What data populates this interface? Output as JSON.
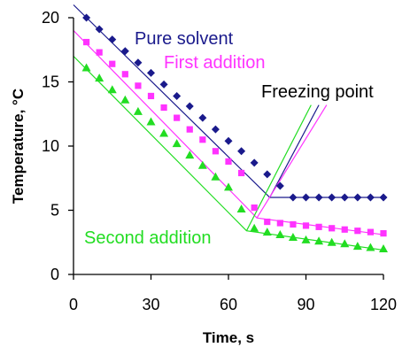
{
  "chart_data": {
    "type": "scatter",
    "xlabel": "Time, s",
    "ylabel": "Temperature,  °C",
    "xlim": [
      0,
      120
    ],
    "ylim": [
      0,
      20
    ],
    "xticks": [
      "0",
      "30",
      "60",
      "90",
      "120"
    ],
    "yticks": [
      "0",
      "5",
      "10",
      "15",
      "20"
    ],
    "grid": false,
    "series": [
      {
        "name": "Pure solvent",
        "color": "#1a1a8c",
        "marker": "diamond",
        "x": [
          5,
          10,
          15,
          20,
          25,
          30,
          35,
          40,
          45,
          50,
          55,
          60,
          65,
          70,
          75,
          80,
          85,
          90,
          95,
          100,
          105,
          110,
          115,
          120
        ],
        "y": [
          20,
          19.1,
          18.3,
          17.4,
          16.5,
          15.7,
          14.8,
          13.9,
          13.1,
          12.2,
          11.3,
          10.4,
          9.6,
          8.7,
          7.8,
          6.9,
          6.0,
          6.0,
          6.0,
          6.0,
          6.0,
          6.0,
          6.0,
          6.0
        ],
        "fit": [
          [
            0,
            21.0
          ],
          [
            76,
            6.0
          ],
          [
            120,
            6.0
          ]
        ]
      },
      {
        "name": "First addition",
        "color": "#ff33ff",
        "marker": "square",
        "x": [
          5,
          10,
          15,
          20,
          25,
          30,
          35,
          40,
          45,
          50,
          55,
          60,
          65,
          70,
          75,
          80,
          85,
          90,
          95,
          100,
          105,
          110,
          115,
          120
        ],
        "y": [
          18.1,
          17.3,
          16.4,
          15.6,
          14.7,
          13.9,
          13.0,
          12.2,
          11.3,
          10.5,
          9.6,
          8.8,
          7.9,
          5.2,
          4.1,
          4.0,
          3.9,
          3.8,
          3.7,
          3.6,
          3.5,
          3.4,
          3.3,
          3.2
        ],
        "fit": [
          [
            0,
            19.0
          ],
          [
            71,
            4.4
          ],
          [
            120,
            3.1
          ]
        ]
      },
      {
        "name": "Second addition",
        "color": "#22dd22",
        "marker": "triangle",
        "x": [
          5,
          10,
          15,
          20,
          25,
          30,
          35,
          40,
          45,
          50,
          55,
          60,
          65,
          70,
          75,
          80,
          85,
          90,
          95,
          100,
          105,
          110,
          115,
          120
        ],
        "y": [
          16.1,
          15.3,
          14.4,
          13.6,
          12.7,
          11.9,
          11.0,
          10.2,
          9.3,
          8.5,
          7.6,
          6.8,
          5.1,
          3.6,
          3.3,
          3.1,
          2.9,
          2.7,
          2.6,
          2.5,
          2.4,
          2.2,
          2.1,
          2.0
        ],
        "fit": [
          [
            0,
            17.0
          ],
          [
            67,
            3.4
          ],
          [
            120,
            1.9
          ]
        ]
      }
    ],
    "annotations": [
      {
        "text": "Freezing point",
        "color": "#000000",
        "arrows": [
          {
            "color": "#1a1a8c",
            "from": [
              76,
              6.0
            ],
            "to": [
              95,
              13.2
            ]
          },
          {
            "color": "#ff33ff",
            "from": [
              71,
              4.4
            ],
            "to": [
              98,
              13.2
            ]
          },
          {
            "color": "#22dd22",
            "from": [
              67,
              3.4
            ],
            "to": [
              92,
              13.2
            ]
          }
        ]
      }
    ]
  }
}
